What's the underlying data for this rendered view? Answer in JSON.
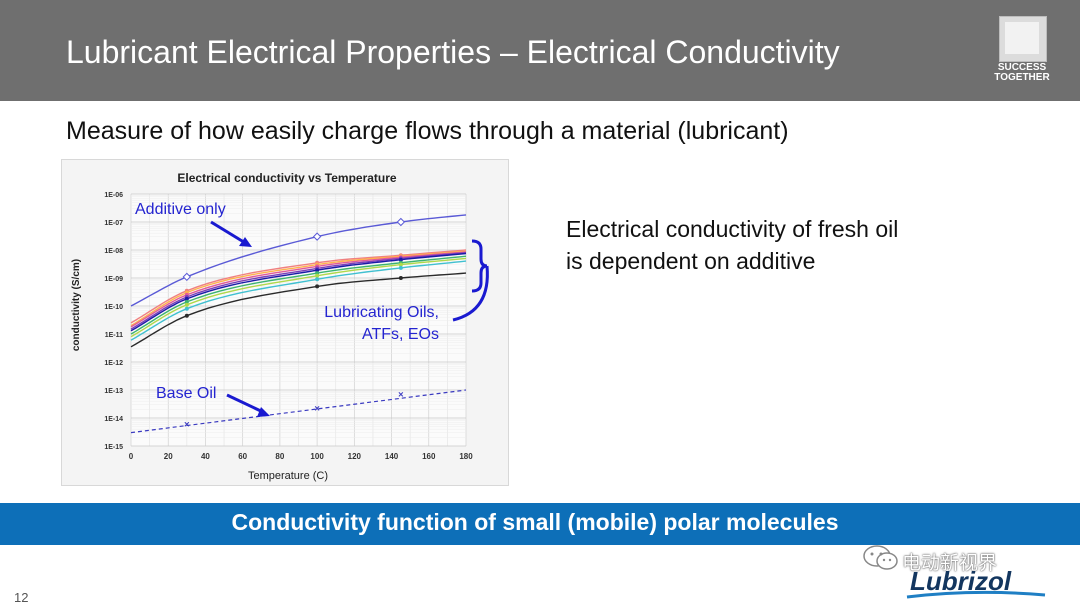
{
  "slide": {
    "title": "Lubricant Electrical Properties – Electrical Conductivity",
    "logo_text": "SUCCESS TOGETHER",
    "subtitle": "Measure of how easily charge flows through a material (lubricant)",
    "side_text_line1": "Electrical conductivity of fresh oil",
    "side_text_line2": "is dependent on additive",
    "banner": "Conductivity function of small (mobile) polar molecules",
    "page_number": "12",
    "watermark": "电动新视界",
    "brand": "Lubrizol"
  },
  "chart_data": {
    "type": "line",
    "title": "Electrical conductivity vs Temperature",
    "xlabel": "Temperature (C)",
    "ylabel": "conductivity (S/cm)",
    "x_range": [
      0,
      180
    ],
    "y_scale": "log",
    "y_range": [
      1e-15,
      1e-06
    ],
    "x_ticks": [
      "0",
      "20",
      "40",
      "60",
      "80",
      "100",
      "120",
      "140",
      "160",
      "180"
    ],
    "y_ticks": [
      "1E-06",
      "1E-07",
      "1E-08",
      "1E-09",
      "1E-10",
      "1E-11",
      "1E-12",
      "1E-13",
      "1E-14",
      "1E-15"
    ],
    "grid": true,
    "annotations": [
      {
        "text": "Additive only"
      },
      {
        "text": "Lubricating Oils,"
      },
      {
        "text": "ATFs, EOs"
      },
      {
        "text": "Base Oil"
      }
    ],
    "series": [
      {
        "group": "additive",
        "color": "#5a5ad6",
        "dash": false,
        "marker": "diamond",
        "x": [
          0,
          30,
          100,
          145,
          180
        ],
        "y": [
          1e-10,
          1.1e-09,
          3e-08,
          1e-07,
          1.8e-07
        ],
        "marker_x": [
          30,
          100,
          145
        ]
      },
      {
        "group": "oils",
        "color": "#f08080",
        "dash": false,
        "x": [
          0,
          30,
          100,
          145,
          180
        ],
        "y": [
          2.5e-11,
          3.5e-10,
          3.5e-09,
          6.5e-09,
          1e-08
        ]
      },
      {
        "group": "oils",
        "color": "#ffb24d",
        "dash": false,
        "x": [
          0,
          30,
          100,
          145,
          180
        ],
        "y": [
          2e-11,
          3e-10,
          3e-09,
          6e-09,
          9e-09
        ]
      },
      {
        "group": "oils",
        "color": "#e05a9a",
        "dash": false,
        "x": [
          0,
          30,
          100,
          145,
          180
        ],
        "y": [
          1.8e-11,
          2.5e-10,
          2.6e-09,
          5.5e-09,
          8.5e-09
        ]
      },
      {
        "group": "oils",
        "color": "#7b3fb8",
        "dash": false,
        "x": [
          0,
          30,
          100,
          145,
          180
        ],
        "y": [
          1.5e-11,
          2.1e-10,
          2.2e-09,
          5e-09,
          8e-09
        ]
      },
      {
        "group": "oils",
        "color": "#1a1aa8",
        "dash": false,
        "x": [
          0,
          30,
          100,
          145,
          180
        ],
        "y": [
          1.3e-11,
          1.8e-10,
          1.9e-09,
          4.5e-09,
          7.5e-09
        ]
      },
      {
        "group": "oils",
        "color": "#3cb371",
        "dash": false,
        "x": [
          0,
          30,
          100,
          145,
          180
        ],
        "y": [
          1e-11,
          1.4e-10,
          1.5e-09,
          3.5e-09,
          6e-09
        ]
      },
      {
        "group": "oils",
        "color": "#b0d94a",
        "dash": false,
        "x": [
          0,
          30,
          100,
          145,
          180
        ],
        "y": [
          8e-12,
          1.1e-10,
          1.2e-09,
          3e-09,
          5e-09
        ]
      },
      {
        "group": "oils",
        "color": "#40c0d0",
        "dash": false,
        "x": [
          0,
          30,
          100,
          145,
          180
        ],
        "y": [
          6e-12,
          8e-11,
          9e-10,
          2.3e-09,
          4e-09
        ]
      },
      {
        "group": "oils",
        "color": "#2b2b2b",
        "dash": false,
        "x": [
          0,
          30,
          100,
          145,
          180
        ],
        "y": [
          3.5e-12,
          4.5e-11,
          5e-10,
          1e-09,
          1.5e-09
        ]
      },
      {
        "group": "base",
        "color": "#3a3ac0",
        "dash": true,
        "x": [
          0,
          180
        ],
        "y": [
          3e-15,
          1e-13
        ],
        "markers": [
          {
            "x": 30,
            "y": 6e-15
          },
          {
            "x": 100,
            "y": 2.2e-14
          },
          {
            "x": 145,
            "y": 7e-14
          }
        ]
      }
    ]
  }
}
